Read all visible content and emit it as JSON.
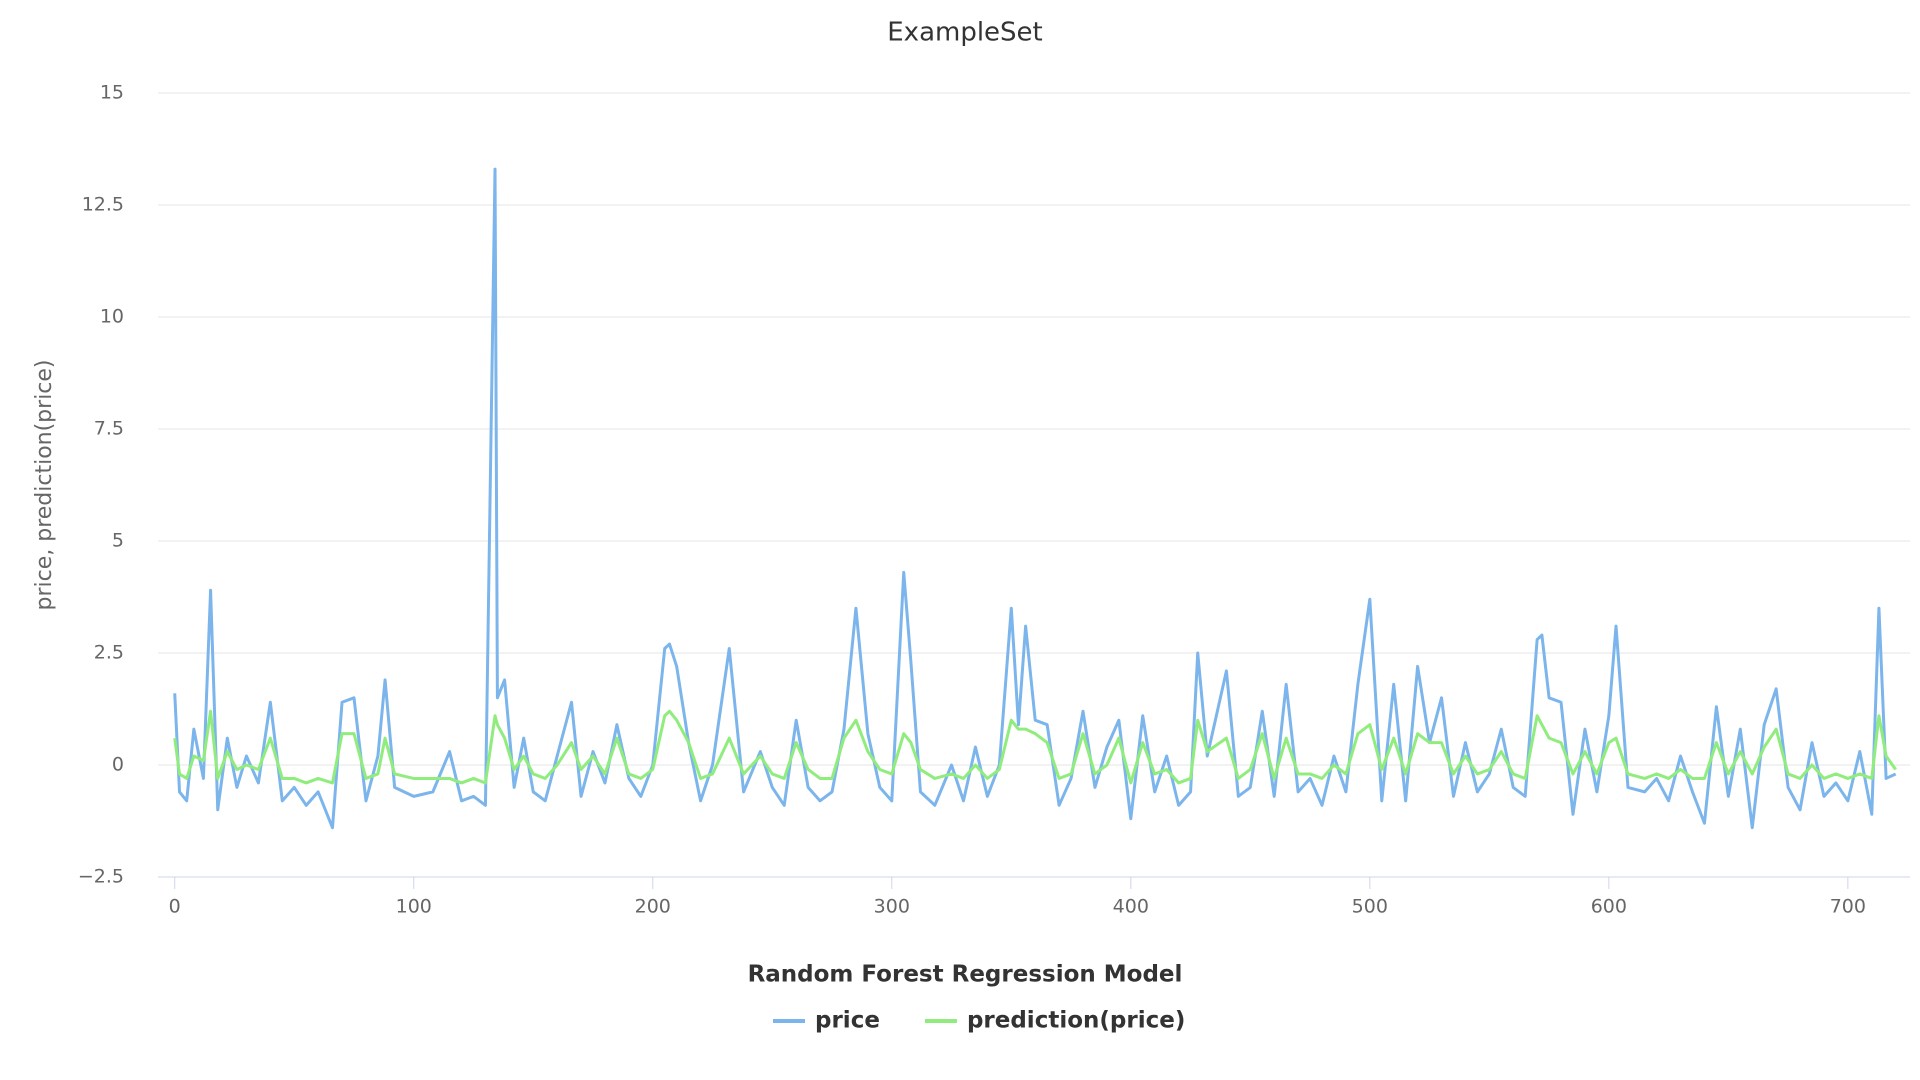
{
  "chart_data": {
    "type": "line",
    "title": "ExampleSet",
    "y_label": "price, prediction(price)",
    "legend_title": "Random Forest Regression Model",
    "x": [
      0,
      2,
      5,
      8,
      12,
      15,
      18,
      22,
      26,
      30,
      35,
      40,
      45,
      50,
      55,
      60,
      66,
      70,
      75,
      80,
      85,
      88,
      92,
      100,
      108,
      115,
      120,
      125,
      130,
      134,
      135,
      138,
      142,
      146,
      150,
      155,
      160,
      166,
      170,
      175,
      180,
      185,
      190,
      195,
      200,
      205,
      207,
      210,
      215,
      220,
      225,
      232,
      238,
      245,
      250,
      255,
      260,
      265,
      270,
      275,
      280,
      285,
      290,
      295,
      300,
      305,
      308,
      312,
      318,
      325,
      330,
      335,
      340,
      345,
      350,
      353,
      356,
      360,
      365,
      370,
      375,
      380,
      385,
      390,
      395,
      400,
      405,
      410,
      415,
      420,
      425,
      428,
      432,
      440,
      445,
      450,
      455,
      460,
      465,
      470,
      475,
      480,
      485,
      490,
      495,
      500,
      505,
      510,
      515,
      520,
      525,
      530,
      535,
      540,
      545,
      550,
      555,
      560,
      565,
      570,
      572,
      575,
      580,
      585,
      590,
      595,
      600,
      603,
      608,
      615,
      620,
      625,
      630,
      635,
      640,
      645,
      650,
      655,
      660,
      665,
      670,
      675,
      680,
      685,
      690,
      695,
      700,
      705,
      710,
      713,
      716,
      720
    ],
    "series": [
      {
        "name": "price",
        "color": "#7cb5ec",
        "values": [
          1.6,
          -0.6,
          -0.8,
          0.8,
          -0.3,
          3.9,
          -1.0,
          0.6,
          -0.5,
          0.2,
          -0.4,
          1.4,
          -0.8,
          -0.5,
          -0.9,
          -0.6,
          -1.4,
          1.4,
          1.5,
          -0.8,
          0.2,
          1.9,
          -0.5,
          -0.7,
          -0.6,
          0.3,
          -0.8,
          -0.7,
          -0.9,
          13.3,
          1.5,
          1.9,
          -0.5,
          0.6,
          -0.6,
          -0.8,
          0.2,
          1.4,
          -0.7,
          0.3,
          -0.4,
          0.9,
          -0.3,
          -0.7,
          0.0,
          2.6,
          2.7,
          2.2,
          0.5,
          -0.8,
          0.0,
          2.6,
          -0.6,
          0.3,
          -0.5,
          -0.9,
          1.0,
          -0.5,
          -0.8,
          -0.6,
          0.8,
          3.5,
          0.7,
          -0.5,
          -0.8,
          4.3,
          2.3,
          -0.6,
          -0.9,
          0.0,
          -0.8,
          0.4,
          -0.7,
          0.0,
          3.5,
          0.9,
          3.1,
          1.0,
          0.9,
          -0.9,
          -0.3,
          1.2,
          -0.5,
          0.4,
          1.0,
          -1.2,
          1.1,
          -0.6,
          0.2,
          -0.9,
          -0.6,
          2.5,
          0.2,
          2.1,
          -0.7,
          -0.5,
          1.2,
          -0.7,
          1.8,
          -0.6,
          -0.3,
          -0.9,
          0.2,
          -0.6,
          1.8,
          3.7,
          -0.8,
          1.8,
          -0.8,
          2.2,
          0.5,
          1.5,
          -0.7,
          0.5,
          -0.6,
          -0.2,
          0.8,
          -0.5,
          -0.7,
          2.8,
          2.9,
          1.5,
          1.4,
          -1.1,
          0.8,
          -0.6,
          1.1,
          3.1,
          -0.5,
          -0.6,
          -0.3,
          -0.8,
          0.2,
          -0.6,
          -1.3,
          1.3,
          -0.7,
          0.8,
          -1.4,
          0.9,
          1.7,
          -0.5,
          -1.0,
          0.5,
          -0.7,
          -0.4,
          -0.8,
          0.3,
          -1.1,
          3.5,
          -0.3,
          -0.2
        ]
      },
      {
        "name": "prediction(price)",
        "color": "#90ed7d",
        "values": [
          0.6,
          -0.2,
          -0.3,
          0.2,
          0.1,
          1.2,
          -0.3,
          0.3,
          -0.1,
          0.0,
          -0.1,
          0.6,
          -0.3,
          -0.3,
          -0.4,
          -0.3,
          -0.4,
          0.7,
          0.7,
          -0.3,
          -0.2,
          0.6,
          -0.2,
          -0.3,
          -0.3,
          -0.3,
          -0.4,
          -0.3,
          -0.4,
          1.1,
          0.9,
          0.6,
          -0.1,
          0.2,
          -0.2,
          -0.3,
          0.0,
          0.5,
          -0.1,
          0.2,
          -0.2,
          0.6,
          -0.2,
          -0.3,
          -0.1,
          1.1,
          1.2,
          1.0,
          0.5,
          -0.3,
          -0.2,
          0.6,
          -0.2,
          0.2,
          -0.2,
          -0.3,
          0.5,
          -0.1,
          -0.3,
          -0.3,
          0.6,
          1.0,
          0.3,
          -0.1,
          -0.2,
          0.7,
          0.5,
          -0.1,
          -0.3,
          -0.2,
          -0.3,
          0.0,
          -0.3,
          -0.1,
          1.0,
          0.8,
          0.8,
          0.7,
          0.5,
          -0.3,
          -0.2,
          0.7,
          -0.2,
          0.0,
          0.6,
          -0.4,
          0.5,
          -0.2,
          -0.1,
          -0.4,
          -0.3,
          1.0,
          0.3,
          0.6,
          -0.3,
          -0.1,
          0.7,
          -0.3,
          0.6,
          -0.2,
          -0.2,
          -0.3,
          0.0,
          -0.2,
          0.7,
          0.9,
          -0.1,
          0.6,
          -0.2,
          0.7,
          0.5,
          0.5,
          -0.2,
          0.2,
          -0.2,
          -0.1,
          0.3,
          -0.2,
          -0.3,
          1.1,
          0.9,
          0.6,
          0.5,
          -0.2,
          0.3,
          -0.2,
          0.5,
          0.6,
          -0.2,
          -0.3,
          -0.2,
          -0.3,
          -0.1,
          -0.3,
          -0.3,
          0.5,
          -0.2,
          0.3,
          -0.2,
          0.4,
          0.8,
          -0.2,
          -0.3,
          0.0,
          -0.3,
          -0.2,
          -0.3,
          -0.2,
          -0.3,
          1.1,
          0.2,
          -0.1
        ]
      }
    ],
    "xlim": [
      -7,
      726
    ],
    "ylim": [
      -2.5,
      15
    ],
    "xticks": [
      0,
      100,
      200,
      300,
      400,
      500,
      600,
      700
    ],
    "yticks": [
      {
        "value": -2.5,
        "label": "−2.5"
      },
      0,
      2.5,
      5,
      7.5,
      10,
      12.5,
      15
    ],
    "grid": true
  }
}
